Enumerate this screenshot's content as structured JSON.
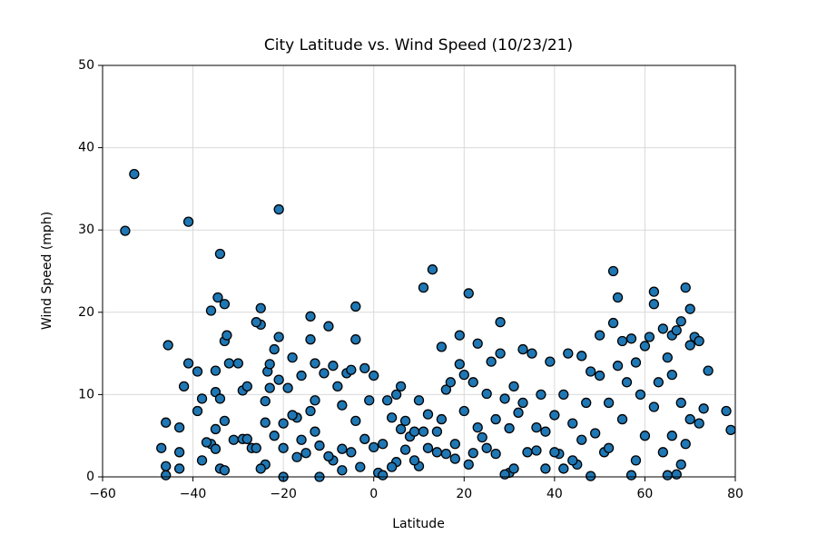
{
  "chart_data": {
    "type": "scatter",
    "title": "City Latitude vs. Wind Speed (10/23/21)",
    "x_label": "Latitude",
    "y_label": "Wind Speed (mph)",
    "color": "#1f77b4",
    "edge_color": "#000000",
    "grid": true,
    "xlim": [
      -60,
      80
    ],
    "ylim": [
      0,
      50
    ],
    "xticks": [
      {
        "value": -60,
        "label": "−60"
      },
      {
        "value": -40,
        "label": "−40"
      },
      {
        "value": -20,
        "label": "−20"
      },
      0,
      20,
      40,
      60,
      80
    ],
    "yticks": [
      0,
      10,
      20,
      30,
      40,
      50
    ],
    "x": [
      -55,
      -53,
      -41,
      -21,
      -34,
      -33,
      -34.5,
      -36,
      -25,
      -25,
      -45.5,
      -41,
      -42,
      -39,
      -47,
      -46,
      -46,
      -46,
      -43,
      -43,
      -43,
      -39,
      -38,
      -38,
      -36,
      -35,
      -35,
      -35,
      -35,
      -34,
      -34,
      -33,
      -33,
      -33,
      -32.5,
      -32,
      -30,
      -29,
      -29,
      -28,
      -28,
      -27,
      -26,
      -24,
      -24,
      -24,
      -23.5,
      -23,
      -23,
      -22,
      -21,
      -21,
      -20,
      -20,
      -20,
      -19,
      -18,
      -17,
      -16,
      -16,
      -15,
      -14,
      -14,
      -13,
      -13,
      -13,
      -12,
      -11,
      -10,
      -9,
      -9,
      -8,
      -7,
      -7,
      -6,
      -5,
      -4,
      -4,
      -4,
      -3,
      -2,
      -1,
      0,
      0,
      1,
      2,
      3,
      4,
      5,
      5,
      6,
      6,
      7,
      8,
      9,
      10,
      10,
      11,
      12,
      12,
      13,
      14,
      15,
      15,
      16,
      17,
      18,
      19,
      19,
      20,
      20,
      21,
      22,
      22,
      23,
      24,
      25,
      26,
      27,
      28,
      28,
      29,
      30,
      30,
      31,
      32,
      33,
      34,
      35,
      36,
      37,
      38,
      39,
      40,
      41,
      42,
      43,
      44,
      45,
      46,
      47,
      48,
      49,
      50,
      50,
      51,
      52,
      53,
      53,
      54,
      54,
      55,
      56,
      57,
      58,
      59,
      60,
      61,
      62,
      62,
      62,
      63,
      64,
      65,
      66,
      66,
      67,
      68,
      69,
      70,
      70,
      71,
      72,
      74,
      78,
      79,
      70,
      68,
      66,
      64,
      65,
      67,
      68,
      69,
      72,
      73,
      60,
      58,
      57,
      55,
      52,
      48,
      46,
      44,
      42,
      40,
      38,
      36,
      33,
      31,
      29,
      27,
      25,
      23,
      21,
      18,
      16,
      14,
      11,
      9,
      7,
      4,
      2,
      -2,
      -5,
      -7,
      -10,
      -12,
      -14,
      -17,
      -18,
      -22,
      -25,
      -26,
      -31,
      -37
    ],
    "values": [
      29.9,
      36.8,
      31,
      32.5,
      27.1,
      21,
      21.8,
      20.2,
      20.5,
      18.5,
      16,
      13.8,
      11,
      12.8,
      3.5,
      6.6,
      1.3,
      0.2,
      1,
      3,
      6,
      8,
      9.5,
      2,
      4,
      3.4,
      5.8,
      10.3,
      12.9,
      9.5,
      1,
      0.8,
      6.8,
      16.5,
      17.2,
      13.8,
      13.8,
      10.5,
      4.6,
      4.6,
      11,
      3.5,
      18.8,
      9.2,
      6.6,
      1.5,
      12.8,
      13.7,
      10.8,
      15.5,
      17,
      11.8,
      6.5,
      3.5,
      0,
      10.8,
      14.5,
      7.2,
      12.3,
      4.5,
      2.9,
      19.5,
      16.7,
      13.8,
      9.3,
      5.5,
      0,
      12.6,
      18.3,
      13.5,
      2,
      11,
      8.7,
      3.4,
      12.6,
      13,
      20.7,
      16.7,
      6.8,
      1.2,
      13.2,
      9.3,
      12.3,
      3.6,
      0.5,
      4,
      9.3,
      7.2,
      10,
      1.8,
      11,
      5.8,
      3.3,
      4.9,
      5.5,
      9.3,
      1.3,
      23,
      7.6,
      3.5,
      25.2,
      5.5,
      15.8,
      7,
      10.6,
      11.5,
      2.2,
      13.7,
      17.2,
      12.4,
      8,
      22.3,
      11.5,
      2.9,
      16.2,
      4.8,
      10.1,
      14,
      7,
      18.8,
      15,
      9.5,
      5.9,
      0.5,
      11,
      7.8,
      15.5,
      3,
      15,
      6,
      10,
      1,
      14,
      7.5,
      2.8,
      10,
      15,
      6.5,
      1.5,
      14.7,
      9,
      12.8,
      5.3,
      17.2,
      12.3,
      3,
      9,
      25,
      18.7,
      21.8,
      13.5,
      16.5,
      11.5,
      16.8,
      13.9,
      10,
      15.9,
      17,
      22.5,
      21,
      8.5,
      11.5,
      18,
      14.5,
      12.4,
      17.2,
      17.8,
      18.9,
      23,
      20.4,
      16,
      17,
      16.5,
      12.9,
      8,
      5.7,
      7,
      9,
      5,
      3,
      0.2,
      0.3,
      1.5,
      4,
      6.5,
      8.3,
      5,
      2,
      0.2,
      7,
      3.5,
      0.1,
      4.5,
      2,
      1,
      3,
      5.5,
      3.2,
      9,
      1,
      0.3,
      2.8,
      3.5,
      6,
      1.5,
      4,
      2.8,
      3,
      5.5,
      2,
      6.8,
      1.2,
      0.2,
      4.6,
      3,
      0.8,
      2.5,
      3.8,
      8,
      2.4,
      7.5,
      5,
      1,
      3.5,
      4.5,
      4.2
    ]
  }
}
